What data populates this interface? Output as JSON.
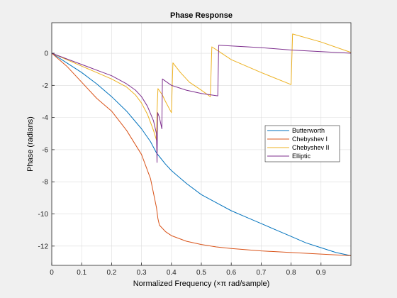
{
  "chart_data": {
    "type": "line",
    "title": "Phase Response",
    "xlabel": "Normalized Frequency (×π rad/sample)",
    "ylabel": "Phase (radians)",
    "xlim": [
      0,
      1
    ],
    "ylim": [
      -13.2,
      1.9
    ],
    "xticks": [
      0,
      0.1,
      0.2,
      0.3,
      0.4,
      0.5,
      0.6,
      0.7,
      0.8,
      0.9
    ],
    "xtick_labels": [
      "0",
      "0.1",
      "0.2",
      "0.3",
      "0.4",
      "0.5",
      "0.6",
      "0.7",
      "0.8",
      "0.9"
    ],
    "yticks": [
      0,
      -2,
      -4,
      -6,
      -8,
      -10,
      -12
    ],
    "ytick_labels": [
      "0",
      "-2",
      "-4",
      "-6",
      "-8",
      "-10",
      "-12"
    ],
    "grid": true,
    "legend_position": "right",
    "series": [
      {
        "name": "Butterworth",
        "color": "#0072bd",
        "points": [
          [
            0,
            0
          ],
          [
            0.05,
            -0.6
          ],
          [
            0.1,
            -1.2
          ],
          [
            0.15,
            -1.9
          ],
          [
            0.2,
            -2.7
          ],
          [
            0.25,
            -3.6
          ],
          [
            0.3,
            -4.7
          ],
          [
            0.33,
            -5.5
          ],
          [
            0.35,
            -6.2
          ],
          [
            0.38,
            -6.9
          ],
          [
            0.4,
            -7.3
          ],
          [
            0.45,
            -8.1
          ],
          [
            0.5,
            -8.8
          ],
          [
            0.55,
            -9.3
          ],
          [
            0.6,
            -9.8
          ],
          [
            0.65,
            -10.2
          ],
          [
            0.7,
            -10.6
          ],
          [
            0.75,
            -11.0
          ],
          [
            0.8,
            -11.4
          ],
          [
            0.85,
            -11.8
          ],
          [
            0.9,
            -12.1
          ],
          [
            0.95,
            -12.4
          ],
          [
            1.0,
            -12.6
          ]
        ]
      },
      {
        "name": "Chebyshev I",
        "color": "#d95319",
        "points": [
          [
            0,
            0
          ],
          [
            0.05,
            -0.8
          ],
          [
            0.1,
            -1.8
          ],
          [
            0.15,
            -2.8
          ],
          [
            0.2,
            -3.6
          ],
          [
            0.25,
            -4.8
          ],
          [
            0.3,
            -6.3
          ],
          [
            0.33,
            -7.8
          ],
          [
            0.34,
            -8.7
          ],
          [
            0.35,
            -9.6
          ],
          [
            0.355,
            -10.3
          ],
          [
            0.36,
            -10.7
          ],
          [
            0.38,
            -11.1
          ],
          [
            0.4,
            -11.35
          ],
          [
            0.45,
            -11.7
          ],
          [
            0.5,
            -11.9
          ],
          [
            0.55,
            -12.05
          ],
          [
            0.6,
            -12.15
          ],
          [
            0.7,
            -12.3
          ],
          [
            0.8,
            -12.4
          ],
          [
            0.9,
            -12.5
          ],
          [
            1.0,
            -12.6
          ]
        ]
      },
      {
        "name": "Chebyshev II",
        "color": "#edb120",
        "points": [
          [
            0,
            0
          ],
          [
            0.05,
            -0.4
          ],
          [
            0.1,
            -0.8
          ],
          [
            0.15,
            -1.2
          ],
          [
            0.2,
            -1.6
          ],
          [
            0.25,
            -2.1
          ],
          [
            0.28,
            -2.6
          ],
          [
            0.3,
            -3.1
          ],
          [
            0.32,
            -3.8
          ],
          [
            0.34,
            -4.8
          ],
          [
            0.35,
            -5.4
          ],
          [
            0.352,
            -3.6
          ],
          [
            0.355,
            -2.2
          ],
          [
            0.37,
            -2.6
          ],
          [
            0.38,
            -3.0
          ],
          [
            0.4,
            -3.7
          ],
          [
            0.405,
            -0.6
          ],
          [
            0.43,
            -1.2
          ],
          [
            0.46,
            -1.8
          ],
          [
            0.5,
            -2.3
          ],
          [
            0.53,
            -2.7
          ],
          [
            0.535,
            0.4
          ],
          [
            0.56,
            0.1
          ],
          [
            0.6,
            -0.4
          ],
          [
            0.7,
            -1.2
          ],
          [
            0.8,
            -1.95
          ],
          [
            0.805,
            1.2
          ],
          [
            0.9,
            0.7
          ],
          [
            1.0,
            0.05
          ]
        ]
      },
      {
        "name": "Elliptic",
        "color": "#7e2f8e",
        "points": [
          [
            0,
            0
          ],
          [
            0.05,
            -0.35
          ],
          [
            0.1,
            -0.7
          ],
          [
            0.15,
            -1.05
          ],
          [
            0.2,
            -1.4
          ],
          [
            0.25,
            -1.9
          ],
          [
            0.28,
            -2.3
          ],
          [
            0.3,
            -2.7
          ],
          [
            0.32,
            -3.3
          ],
          [
            0.34,
            -4.2
          ],
          [
            0.35,
            -5.0
          ],
          [
            0.352,
            -6.8
          ],
          [
            0.354,
            -3.7
          ],
          [
            0.36,
            -4.0
          ],
          [
            0.368,
            -4.7
          ],
          [
            0.37,
            -1.6
          ],
          [
            0.4,
            -2.0
          ],
          [
            0.45,
            -2.3
          ],
          [
            0.5,
            -2.5
          ],
          [
            0.555,
            -2.65
          ],
          [
            0.558,
            0.5
          ],
          [
            0.6,
            0.45
          ],
          [
            0.7,
            0.35
          ],
          [
            0.8,
            0.2
          ],
          [
            0.9,
            0.1
          ],
          [
            1.0,
            0.0
          ]
        ]
      }
    ]
  }
}
